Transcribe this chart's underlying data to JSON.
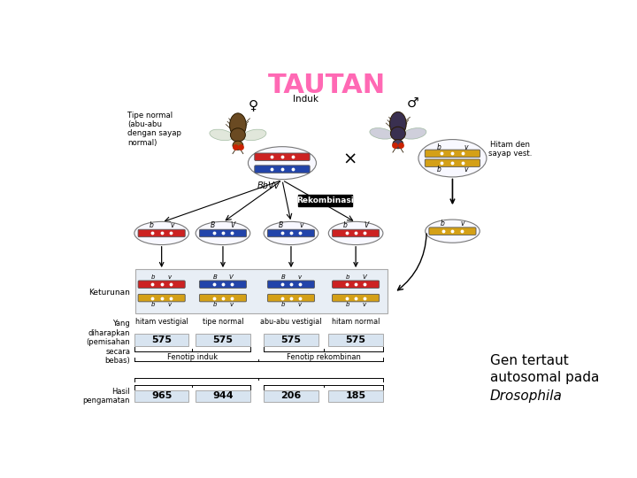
{
  "title": "TAUTAN",
  "title_color": "#FF69B4",
  "title_fontsize": 22,
  "bg_color": "#FFFFFF",
  "label_induk": "Induk",
  "label_female_desc": "Tipe normal\n(abu-abu\ndengan sayap\nnormal)",
  "label_female_genotype": "BbVv",
  "label_male_desc": "Hitam den\nsayap vest.",
  "label_rekombinasi": "Rekombinasi",
  "label_keturunan": "Keturunan",
  "label_yang_diharapkan": "Yang\ndiharapkan\n(pemisahan\nsecara\nbebas)",
  "label_hasil": "Hasil\npengamatan",
  "offspring_labels": [
    "hitam vestigial",
    "tipe normal",
    "abu-abu vestigial",
    "hitam normal"
  ],
  "expected_values": [
    "575",
    "575",
    "575",
    "575"
  ],
  "observed_values": [
    "965",
    "944",
    "206",
    "185"
  ],
  "fenotip_induk": "Fenotip induk",
  "fenotip_rekombinan": "Fenotip rekombinan",
  "box_fill": "#D8E4F0",
  "box_edge": "#AAAAAA"
}
